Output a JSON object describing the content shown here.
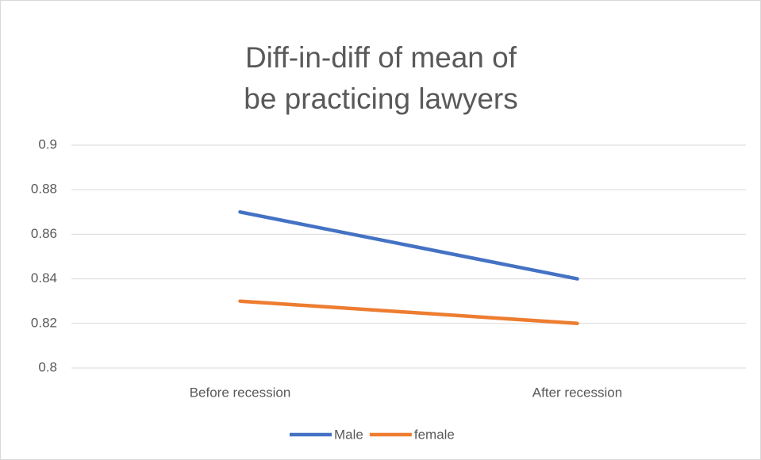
{
  "chart_data": {
    "type": "line",
    "title": [
      "Diff-in-diff of mean of",
      "be practicing lawyers"
    ],
    "categories": [
      "Before recession",
      "After recession"
    ],
    "series": [
      {
        "name": "Male",
        "color": "#4472c4",
        "values": [
          0.87,
          0.84
        ]
      },
      {
        "name": "female",
        "color": "#ed7d31",
        "values": [
          0.83,
          0.82
        ]
      }
    ],
    "ylim": [
      0.8,
      0.9
    ],
    "yticks": [
      0.8,
      0.82,
      0.84,
      0.86,
      0.88,
      0.9
    ],
    "grid": true,
    "legend": "bottom"
  }
}
